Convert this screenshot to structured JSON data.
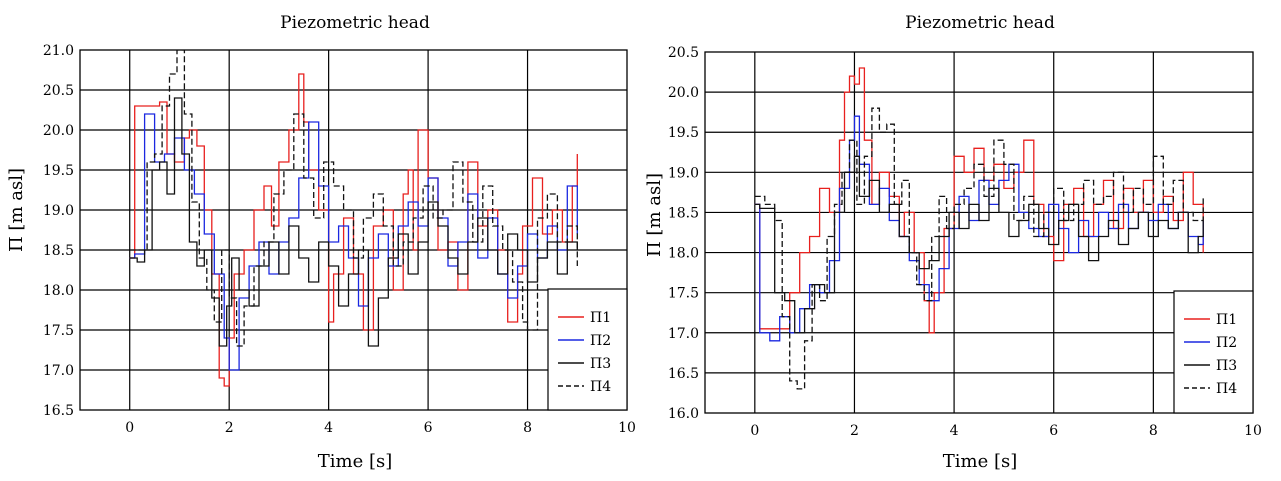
{
  "chart_data": [
    {
      "type": "line",
      "title": "Piezometric head",
      "xlabel": "Time [s]",
      "ylabel": "Π [m asl]",
      "xlim": [
        -1,
        10
      ],
      "ylim": [
        16.5,
        21.0
      ],
      "xticks": [
        "0",
        "2",
        "4",
        "6",
        "8",
        "10"
      ],
      "yticks": [
        "16.5",
        "17.0",
        "17.5",
        "18.0",
        "18.5",
        "19.0",
        "19.5",
        "20.0",
        "20.5",
        "21.0"
      ],
      "grid": true,
      "legend_position": "bottom-right",
      "series": [
        {
          "name": "Π1",
          "color": "#e8201e",
          "dash": "solid",
          "x": [
            0,
            0.1,
            0.6,
            0.75,
            0.9,
            1.1,
            1.2,
            1.35,
            1.5,
            1.65,
            1.8,
            1.9,
            2.0,
            2.1,
            2.3,
            2.5,
            2.7,
            2.85,
            3.0,
            3.2,
            3.4,
            3.5,
            3.6,
            3.8,
            4.0,
            4.1,
            4.3,
            4.5,
            4.7,
            4.9,
            5.1,
            5.3,
            5.5,
            5.6,
            5.7,
            5.8,
            6.0,
            6.2,
            6.4,
            6.6,
            6.8,
            7.0,
            7.2,
            7.4,
            7.6,
            7.8,
            7.9,
            8.1,
            8.3,
            8.5,
            8.7,
            8.9,
            9.0
          ],
          "y": [
            18.4,
            20.3,
            20.35,
            19.7,
            19.6,
            19.9,
            20.0,
            19.8,
            19.0,
            18.2,
            16.9,
            16.8,
            17.4,
            18.2,
            18.5,
            19.0,
            19.3,
            18.8,
            19.6,
            20.0,
            20.7,
            20.1,
            19.5,
            19.0,
            17.6,
            18.2,
            18.9,
            18.2,
            17.5,
            18.8,
            19.0,
            18.0,
            19.2,
            19.5,
            18.5,
            20.0,
            19.4,
            18.5,
            18.6,
            18.0,
            19.6,
            18.8,
            19.0,
            18.5,
            17.6,
            18.2,
            18.8,
            19.4,
            18.7,
            19.0,
            18.6,
            19.3,
            19.7
          ]
        },
        {
          "name": "Π2",
          "color": "#1b28e0",
          "dash": "solid",
          "x": [
            0,
            0.1,
            0.3,
            0.5,
            0.7,
            0.9,
            1.1,
            1.3,
            1.5,
            1.7,
            1.9,
            2.0,
            2.2,
            2.4,
            2.6,
            2.8,
            3.0,
            3.2,
            3.4,
            3.6,
            3.8,
            4.0,
            4.2,
            4.4,
            4.6,
            4.8,
            5.0,
            5.2,
            5.4,
            5.6,
            5.8,
            6.0,
            6.2,
            6.4,
            6.6,
            6.8,
            7.0,
            7.2,
            7.4,
            7.6,
            7.8,
            8.0,
            8.2,
            8.4,
            8.6,
            8.8,
            9.0
          ],
          "y": [
            18.4,
            18.45,
            20.2,
            19.6,
            19.7,
            19.9,
            19.5,
            19.2,
            18.7,
            18.2,
            17.4,
            17.0,
            17.9,
            18.3,
            18.6,
            18.2,
            18.6,
            18.9,
            19.4,
            20.1,
            19.3,
            18.6,
            18.8,
            18.4,
            17.8,
            18.4,
            18.7,
            18.3,
            18.8,
            19.1,
            18.8,
            19.4,
            18.9,
            18.3,
            18.6,
            19.2,
            18.4,
            18.9,
            18.2,
            17.9,
            18.3,
            18.7,
            18.4,
            18.8,
            18.5,
            19.3,
            18.7
          ]
        },
        {
          "name": "Π3",
          "color": "#111111",
          "dash": "solid",
          "x": [
            0,
            0.15,
            0.3,
            0.45,
            0.6,
            0.75,
            0.9,
            1.05,
            1.2,
            1.35,
            1.5,
            1.65,
            1.8,
            1.95,
            2.05,
            2.2,
            2.4,
            2.6,
            2.8,
            3.0,
            3.2,
            3.4,
            3.6,
            3.8,
            4.0,
            4.2,
            4.4,
            4.6,
            4.8,
            5.0,
            5.2,
            5.4,
            5.6,
            5.8,
            6.0,
            6.2,
            6.4,
            6.6,
            6.8,
            7.0,
            7.2,
            7.4,
            7.6,
            7.8,
            8.0,
            8.2,
            8.4,
            8.6,
            8.8,
            9.0
          ],
          "y": [
            18.4,
            18.35,
            18.5,
            19.5,
            19.6,
            19.2,
            20.4,
            19.7,
            18.6,
            18.3,
            18.5,
            17.9,
            17.3,
            17.8,
            18.4,
            18.0,
            17.8,
            18.3,
            18.6,
            18.2,
            18.8,
            18.4,
            18.1,
            18.6,
            18.3,
            17.8,
            18.2,
            18.5,
            17.3,
            17.9,
            18.4,
            18.7,
            18.2,
            18.6,
            19.1,
            18.8,
            18.4,
            18.2,
            18.6,
            18.9,
            18.5,
            18.2,
            18.7,
            18.5,
            18.1,
            18.4,
            18.6,
            18.2,
            18.6,
            18.5
          ]
        },
        {
          "name": "Π4",
          "color": "#111111",
          "dash": "dashed",
          "x": [
            0,
            0.2,
            0.35,
            0.5,
            0.65,
            0.8,
            0.95,
            1.1,
            1.25,
            1.4,
            1.55,
            1.7,
            1.85,
            2.0,
            2.15,
            2.3,
            2.5,
            2.7,
            2.9,
            3.1,
            3.3,
            3.5,
            3.7,
            3.9,
            4.1,
            4.3,
            4.5,
            4.7,
            4.9,
            5.1,
            5.3,
            5.5,
            5.7,
            5.9,
            6.1,
            6.3,
            6.5,
            6.7,
            6.9,
            7.1,
            7.3,
            7.5,
            7.7,
            7.9,
            8.0,
            8.2,
            8.4,
            8.6,
            8.8,
            9.0
          ],
          "y": [
            18.5,
            18.5,
            19.6,
            19.7,
            20.3,
            20.7,
            21.0,
            20.2,
            19.1,
            18.4,
            18.0,
            17.6,
            18.5,
            17.9,
            17.3,
            17.8,
            18.3,
            18.6,
            19.2,
            19.5,
            20.2,
            19.4,
            18.9,
            19.6,
            19.3,
            19.0,
            18.4,
            18.9,
            19.2,
            18.8,
            18.3,
            18.6,
            18.9,
            19.3,
            18.9,
            19.0,
            19.6,
            19.1,
            18.6,
            19.3,
            18.8,
            18.5,
            18.1,
            17.6,
            17.5,
            18.9,
            19.2,
            18.6,
            18.8,
            18.3
          ]
        }
      ]
    },
    {
      "type": "line",
      "title": "Piezometric head",
      "xlabel": "Time [s]",
      "ylabel": "Π [m asl]",
      "xlim": [
        -1,
        10
      ],
      "ylim": [
        16.0,
        20.5
      ],
      "xticks": [
        "0",
        "2",
        "4",
        "6",
        "8",
        "10"
      ],
      "yticks": [
        "16.0",
        "16.5",
        "17.0",
        "17.5",
        "18.0",
        "18.5",
        "19.0",
        "19.5",
        "20.0",
        "20.5"
      ],
      "grid": true,
      "legend_position": "bottom-right",
      "series": [
        {
          "name": "Π1",
          "color": "#e8201e",
          "dash": "solid",
          "x": [
            0,
            0.1,
            0.5,
            0.7,
            0.9,
            1.1,
            1.3,
            1.5,
            1.7,
            1.8,
            1.9,
            2.0,
            2.1,
            2.2,
            2.35,
            2.5,
            2.7,
            2.9,
            3.0,
            3.2,
            3.4,
            3.5,
            3.6,
            3.8,
            4.0,
            4.2,
            4.4,
            4.6,
            4.8,
            5.0,
            5.2,
            5.4,
            5.6,
            5.8,
            6.0,
            6.2,
            6.4,
            6.6,
            6.8,
            7.0,
            7.2,
            7.4,
            7.6,
            7.8,
            8.0,
            8.2,
            8.4,
            8.6,
            8.8,
            9.0
          ],
          "y": [
            18.6,
            17.05,
            17.05,
            17.5,
            18.0,
            18.2,
            18.8,
            18.5,
            19.4,
            20.0,
            20.2,
            20.1,
            20.3,
            19.4,
            18.6,
            19.0,
            18.7,
            18.2,
            18.5,
            18.0,
            17.4,
            17.0,
            17.5,
            18.3,
            19.2,
            19.0,
            19.3,
            18.9,
            19.1,
            18.8,
            19.0,
            19.4,
            18.6,
            18.2,
            17.9,
            18.6,
            18.8,
            18.2,
            18.6,
            18.9,
            18.3,
            18.8,
            18.5,
            18.9,
            18.5,
            18.7,
            18.4,
            19.0,
            18.6,
            18.0
          ]
        },
        {
          "name": "Π2",
          "color": "#1b28e0",
          "dash": "solid",
          "x": [
            0,
            0.1,
            0.3,
            0.5,
            0.7,
            0.9,
            1.1,
            1.3,
            1.5,
            1.7,
            1.9,
            2.0,
            2.1,
            2.3,
            2.5,
            2.7,
            2.9,
            3.1,
            3.3,
            3.5,
            3.7,
            3.9,
            4.1,
            4.3,
            4.5,
            4.7,
            4.9,
            5.1,
            5.3,
            5.5,
            5.7,
            5.9,
            6.1,
            6.3,
            6.5,
            6.7,
            6.9,
            7.1,
            7.3,
            7.5,
            7.7,
            7.9,
            8.1,
            8.3,
            8.5,
            8.7,
            8.9,
            9.0
          ],
          "y": [
            18.6,
            17.0,
            16.9,
            17.2,
            17.0,
            17.3,
            17.6,
            17.5,
            17.9,
            18.8,
            19.4,
            19.7,
            19.1,
            18.6,
            18.8,
            18.4,
            18.2,
            17.9,
            17.6,
            17.4,
            17.8,
            18.3,
            18.7,
            18.4,
            18.9,
            18.6,
            18.9,
            19.1,
            18.5,
            18.3,
            18.2,
            18.6,
            18.3,
            18.0,
            18.4,
            18.2,
            18.5,
            18.3,
            18.6,
            18.3,
            18.5,
            18.4,
            18.6,
            18.3,
            18.5,
            18.2,
            18.1,
            18.4
          ]
        },
        {
          "name": "Π3",
          "color": "#111111",
          "dash": "solid",
          "x": [
            0,
            0.1,
            0.4,
            0.6,
            0.8,
            1.0,
            1.2,
            1.4,
            1.6,
            1.8,
            2.0,
            2.1,
            2.3,
            2.5,
            2.7,
            2.9,
            3.1,
            3.3,
            3.5,
            3.7,
            3.9,
            4.1,
            4.3,
            4.5,
            4.7,
            4.9,
            5.1,
            5.3,
            5.5,
            5.7,
            5.9,
            6.1,
            6.3,
            6.5,
            6.7,
            6.9,
            7.1,
            7.3,
            7.5,
            7.7,
            7.9,
            8.1,
            8.3,
            8.5,
            8.7,
            8.9,
            9.0
          ],
          "y": [
            18.6,
            18.55,
            17.5,
            17.4,
            17.0,
            17.3,
            17.6,
            17.5,
            18.5,
            19.0,
            19.2,
            18.7,
            18.9,
            18.5,
            18.6,
            18.2,
            18.0,
            17.8,
            17.9,
            18.2,
            18.5,
            18.3,
            18.6,
            18.4,
            18.8,
            18.5,
            18.2,
            18.4,
            18.6,
            18.3,
            18.1,
            18.4,
            18.6,
            18.2,
            17.9,
            18.2,
            18.4,
            18.1,
            18.3,
            18.5,
            18.2,
            18.4,
            18.3,
            18.5,
            18.0,
            18.2,
            18.4
          ]
        },
        {
          "name": "Π4",
          "color": "#111111",
          "dash": "dashed",
          "x": [
            0,
            0.2,
            0.4,
            0.55,
            0.7,
            0.85,
            1.0,
            1.15,
            1.3,
            1.45,
            1.6,
            1.75,
            1.9,
            2.05,
            2.2,
            2.35,
            2.5,
            2.65,
            2.8,
            2.95,
            3.1,
            3.25,
            3.4,
            3.55,
            3.7,
            3.85,
            4.0,
            4.2,
            4.4,
            4.6,
            4.8,
            5.0,
            5.2,
            5.4,
            5.6,
            5.8,
            6.0,
            6.2,
            6.4,
            6.6,
            6.8,
            7.0,
            7.2,
            7.4,
            7.6,
            7.8,
            8.0,
            8.2,
            8.4,
            8.6,
            8.8,
            9.0
          ],
          "y": [
            18.7,
            18.6,
            18.4,
            17.2,
            16.4,
            16.3,
            16.9,
            17.6,
            17.4,
            18.2,
            18.6,
            19.0,
            19.4,
            18.6,
            19.2,
            19.8,
            19.5,
            19.6,
            18.6,
            18.9,
            18.0,
            17.6,
            17.4,
            18.2,
            18.7,
            18.3,
            18.6,
            18.8,
            19.1,
            18.7,
            19.4,
            19.1,
            18.4,
            18.7,
            18.2,
            18.5,
            18.8,
            18.4,
            18.6,
            18.9,
            18.6,
            18.7,
            19.0,
            18.5,
            18.8,
            18.6,
            19.2,
            18.6,
            18.9,
            18.5,
            18.4,
            18.7
          ]
        }
      ]
    }
  ]
}
